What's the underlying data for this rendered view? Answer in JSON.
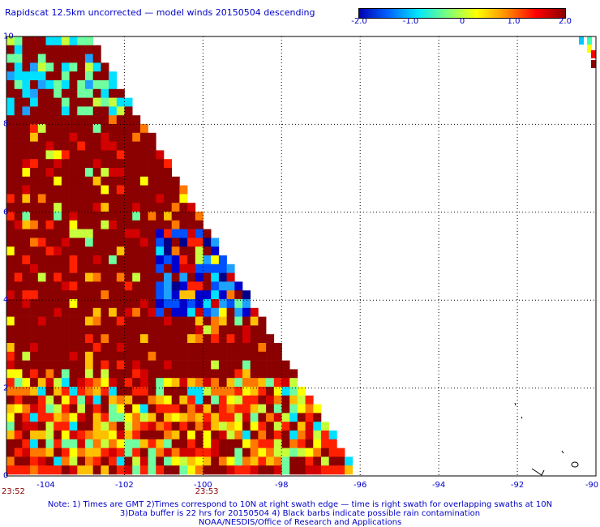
{
  "title": "Rapidscat 12.5km uncorrected — model winds 20150504 descending",
  "colorbar": {
    "labels": [
      "-2.0",
      "-1.0",
      "0",
      "1.0",
      "2.0"
    ],
    "values": [
      -2,
      -1,
      0,
      1,
      2
    ],
    "colors": [
      "#0000b4",
      "#0064ff",
      "#00e6ff",
      "#7cff7c",
      "#ffff00",
      "#ff8c00",
      "#ff0000",
      "#8b0000"
    ]
  },
  "map": {
    "lat_range": [
      0,
      10
    ],
    "lon_range": [
      -105,
      -90
    ],
    "y_ticks": [
      "0",
      "2",
      "4",
      "6",
      "8",
      "10"
    ],
    "y_tick_values": [
      0,
      2,
      4,
      6,
      8,
      10
    ],
    "x_ticks": [
      "-104",
      "-102",
      "-100",
      "-98",
      "-96",
      "-94",
      "-92",
      "-90"
    ],
    "x_tick_values": [
      -104,
      -102,
      -100,
      -98,
      -96,
      -94,
      -92,
      -90
    ],
    "grid_lat": [
      2,
      4,
      6,
      8
    ],
    "grid_lon": [
      -102,
      -100,
      -98,
      -96,
      -94,
      -92
    ]
  },
  "times": [
    {
      "label": "23:52",
      "lon": -105
    },
    {
      "label": "23:53",
      "lon": -100.2
    }
  ],
  "notes": [
    "Note: 1) Times are GMT 2)Times correspond to 10N at right swath edge — time is right swath for overlapping swaths at 10N",
    "3)Data buffer is 22 hrs for 20150504 4) Black barbs indicate possible rain contamination",
    "NOAA/NESDIS/Office of Research and Applications"
  ],
  "palette": {
    "axis": "#000000",
    "label": "#0000c8",
    "time": "#8b0000"
  }
}
